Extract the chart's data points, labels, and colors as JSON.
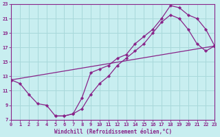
{
  "xlabel": "Windchill (Refroidissement éolien,°C)",
  "xlim": [
    0,
    23
  ],
  "ylim": [
    7,
    23
  ],
  "xticks": [
    0,
    1,
    2,
    3,
    4,
    5,
    6,
    7,
    8,
    9,
    10,
    11,
    12,
    13,
    14,
    15,
    16,
    17,
    18,
    19,
    20,
    21,
    22,
    23
  ],
  "yticks": [
    7,
    9,
    11,
    13,
    15,
    17,
    19,
    21,
    23
  ],
  "bg_color": "#c8eef0",
  "grid_color": "#a8d8da",
  "line_color": "#882288",
  "line1_x": [
    0,
    1,
    2,
    3,
    4,
    5,
    6,
    7,
    8,
    9,
    10,
    11,
    12,
    13,
    14,
    15,
    16,
    17,
    18,
    19,
    20,
    21,
    22,
    23
  ],
  "line1_y": [
    12.5,
    12.0,
    10.5,
    9.2,
    9.0,
    7.5,
    7.5,
    7.8,
    10.0,
    13.5,
    14.0,
    14.5,
    15.5,
    16.0,
    17.5,
    18.5,
    19.5,
    21.0,
    22.8,
    22.5,
    21.5,
    21.0,
    19.5,
    17.2
  ],
  "line2_x": [
    0,
    23
  ],
  "line2_y": [
    12.5,
    17.2
  ],
  "line3_x": [
    5,
    6,
    7,
    8,
    9,
    10,
    11,
    12,
    13,
    14,
    15,
    16,
    17,
    18,
    19,
    20,
    21,
    22,
    23
  ],
  "line3_y": [
    7.5,
    7.5,
    7.8,
    8.5,
    10.5,
    12.0,
    13.0,
    14.5,
    15.5,
    16.5,
    17.5,
    19.0,
    20.5,
    21.5,
    21.0,
    19.5,
    17.5,
    16.5,
    17.2
  ]
}
